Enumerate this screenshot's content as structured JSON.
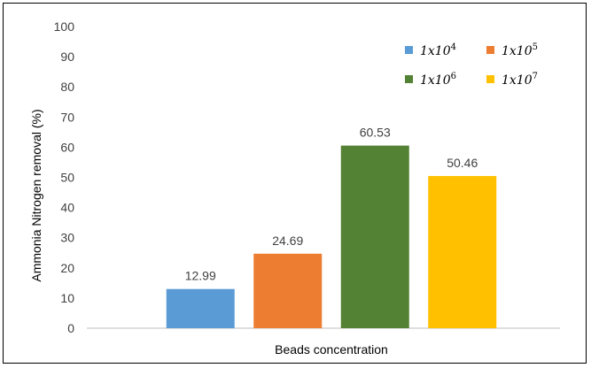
{
  "chart_data": {
    "type": "bar",
    "title": "",
    "xlabel": "Beads concentration",
    "ylabel": "Ammonia Nitrogen removal (%)",
    "ylim": [
      0,
      100
    ],
    "yticks": [
      0,
      10,
      20,
      30,
      40,
      50,
      60,
      70,
      80,
      90,
      100
    ],
    "grid": false,
    "legend_position": "top-right",
    "series": [
      {
        "name": "1x10",
        "exponent": "4",
        "value": 12.99,
        "label": "12.99",
        "color": "#5B9BD5"
      },
      {
        "name": "1x10",
        "exponent": "5",
        "value": 24.69,
        "label": "24.69",
        "color": "#ED7D31"
      },
      {
        "name": "1x10",
        "exponent": "6",
        "value": 60.53,
        "label": "60.53",
        "color": "#548235"
      },
      {
        "name": "1x10",
        "exponent": "7",
        "value": 50.46,
        "label": "50.46",
        "color": "#FFC000"
      }
    ]
  }
}
